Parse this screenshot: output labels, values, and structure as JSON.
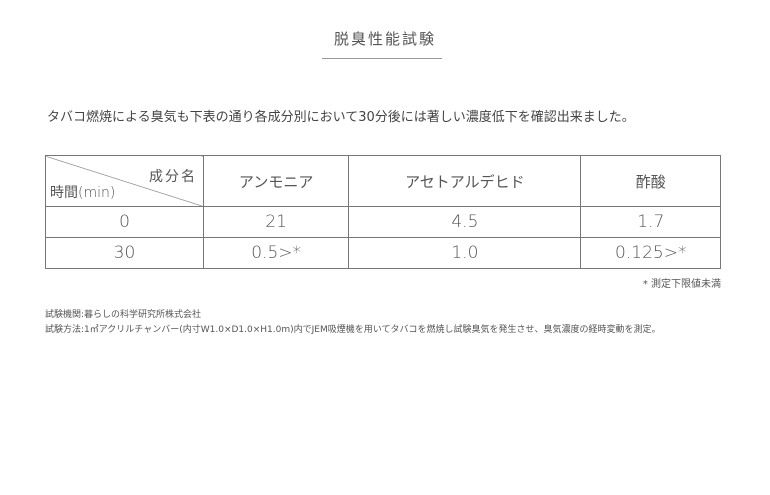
{
  "title": "脱臭性能試験",
  "intro": "タバコ燃焼による臭気も下表の通り各成分別において30分後には著しい濃度低下を確認出来ました。",
  "table": {
    "corner_top": "成分名",
    "corner_bottom": "時間(min)",
    "headers": [
      "アンモニア",
      "アセトアルデヒド",
      "酢酸"
    ],
    "rows": [
      {
        "time": "0",
        "values": [
          "21",
          "4.5",
          "1.7"
        ]
      },
      {
        "time": "30",
        "values": [
          "0.5>*",
          "1.0",
          "0.125>*"
        ]
      }
    ]
  },
  "footnote": "* 測定下限値未満",
  "test_org": "試験機関:暮らしの科学研究所株式会社",
  "test_method": "試験方法:1㎥アクリルチャンバー(内寸W1.0×D1.0×H1.0m)内でJEM吸煙機を用いてタバコを燃焼し試験臭気を発生させ、臭気濃度の経時変動を測定。"
}
